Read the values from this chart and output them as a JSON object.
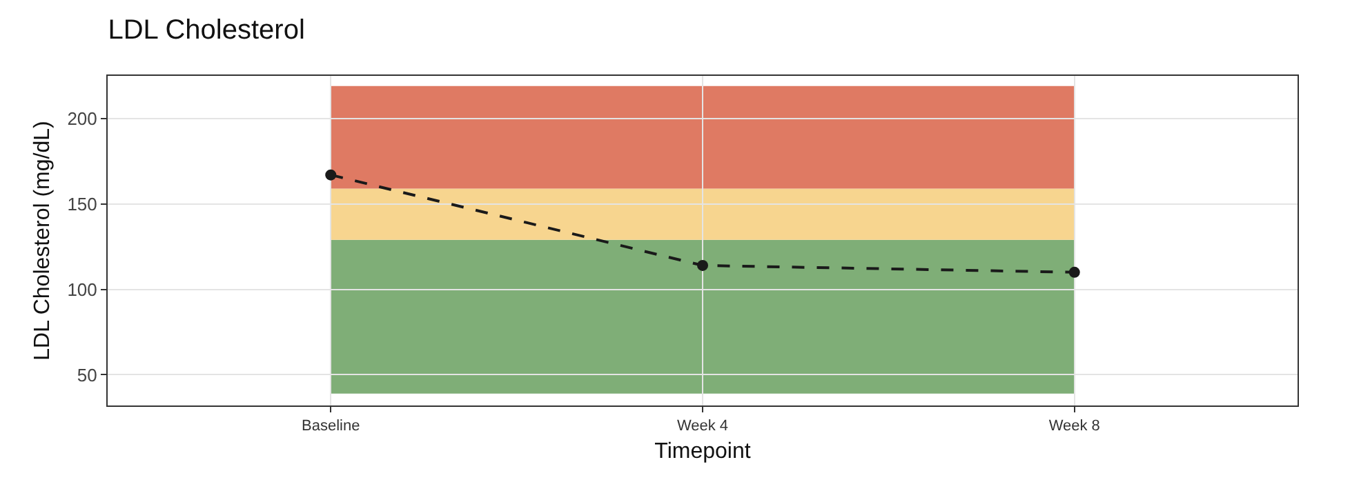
{
  "chart_data": {
    "type": "line",
    "title": "LDL Cholesterol",
    "xlabel": "Timepoint",
    "ylabel": "LDL Cholesterol (mg/dL)",
    "categories": [
      "Baseline",
      "Week 4",
      "Week 8"
    ],
    "series": [
      {
        "color": "#1a1a1a",
        "values": [
          167,
          114,
          110
        ]
      }
    ],
    "marker": "circle",
    "line_style": "dashed",
    "ylim": [
      32,
      225
    ],
    "yticks": [
      50,
      100,
      150,
      200
    ],
    "grid": true,
    "bands": [
      {
        "axis": "y",
        "from": 39,
        "to": 129,
        "color": "#7fae77"
      },
      {
        "axis": "y",
        "from": 129,
        "to": 159,
        "color": "#f7d58f"
      },
      {
        "axis": "y",
        "from": 159,
        "to": 219,
        "color": "#df7a63"
      }
    ]
  }
}
